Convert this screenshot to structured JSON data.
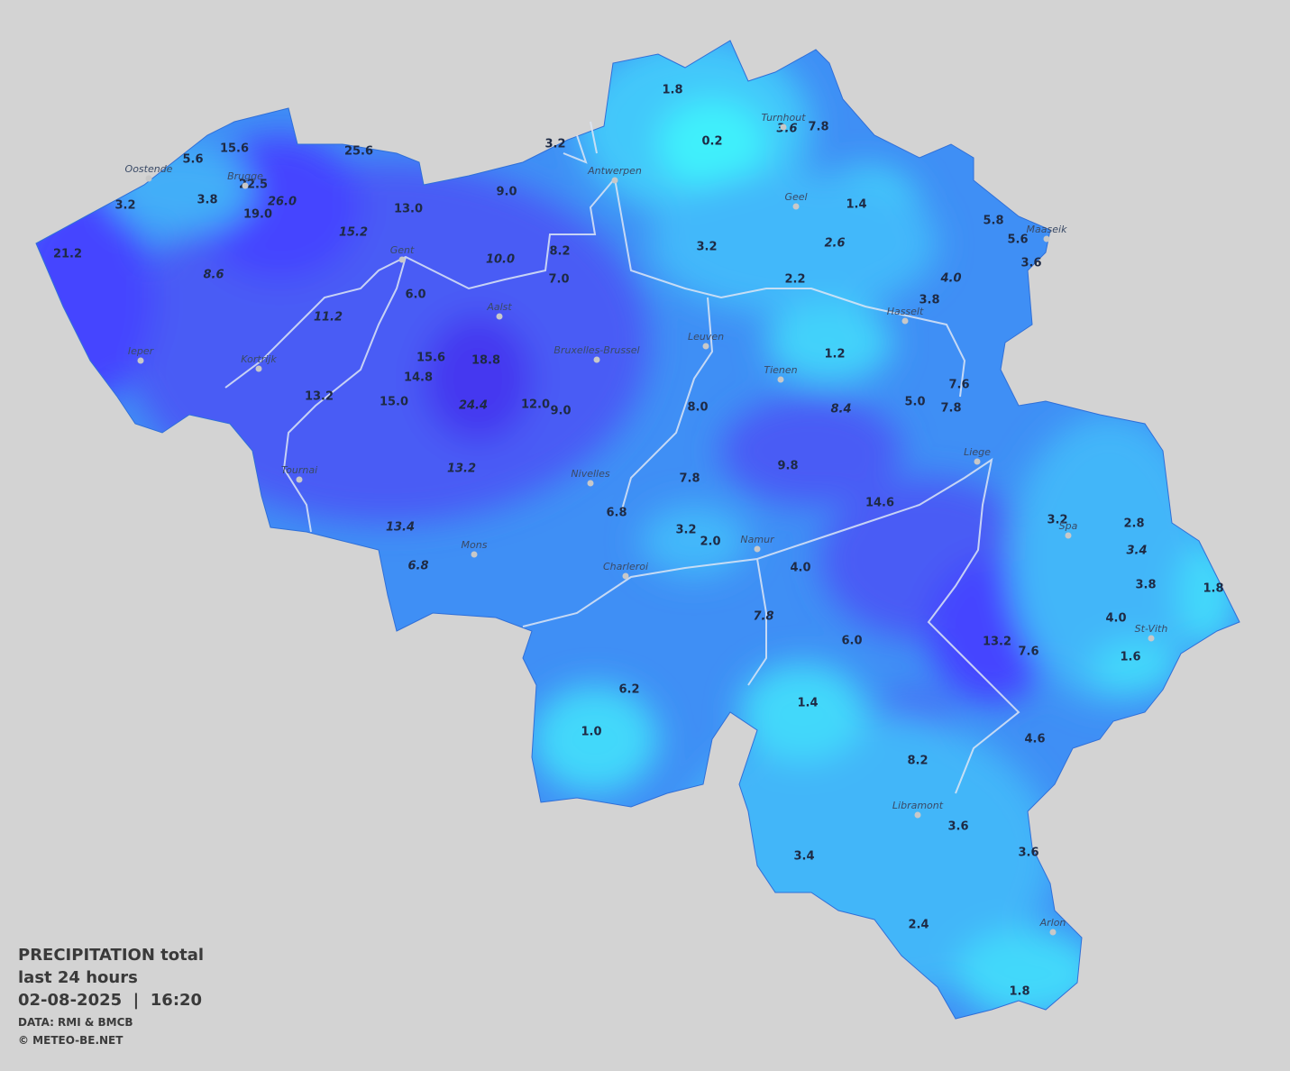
{
  "title": {
    "lines": [
      "PRECIPITATION total",
      "last 24 hours",
      "02-08-2025  |  16:20"
    ],
    "credits": [
      "DATA: RMI & BMCB",
      "© METEO-BE.NET"
    ]
  },
  "cities": [
    "Oostende",
    "Brugge",
    "Antwerpen",
    "Turnhout",
    "Geel",
    "Maaseik",
    "Gent",
    "Hasselt",
    "Aalst",
    "Leuven",
    "Bruxelles-Brussel",
    "Ieper",
    "Kortrijk",
    "Tienen",
    "Liege",
    "Tournai",
    "Nivelles",
    "Spa",
    "Namur",
    "Mons",
    "Charleroi",
    "St-Vith",
    "Libramont",
    "Arlon"
  ],
  "stations": [
    {
      "text": "1.8",
      "italic": false
    },
    {
      "text": "0.2",
      "italic": false
    },
    {
      "text": "3.2",
      "italic": false
    },
    {
      "text": "7.8",
      "italic": false
    },
    {
      "text": "3.6",
      "italic": true
    },
    {
      "text": "15.6",
      "italic": false
    },
    {
      "text": "5.6",
      "italic": false
    },
    {
      "text": "25.6",
      "italic": false
    },
    {
      "text": "22.5",
      "italic": false
    },
    {
      "text": "26.0",
      "italic": true
    },
    {
      "text": "3.8",
      "italic": false
    },
    {
      "text": "3.2",
      "italic": false
    },
    {
      "text": "19.0",
      "italic": false
    },
    {
      "text": "13.0",
      "italic": false
    },
    {
      "text": "9.0",
      "italic": false
    },
    {
      "text": "1.4",
      "italic": false
    },
    {
      "text": "5.8",
      "italic": false
    },
    {
      "text": "5.6",
      "italic": false
    },
    {
      "text": "3.6",
      "italic": false
    },
    {
      "text": "15.2",
      "italic": true
    },
    {
      "text": "21.2",
      "italic": false
    },
    {
      "text": "8.6",
      "italic": true
    },
    {
      "text": "10.0",
      "italic": true
    },
    {
      "text": "8.2",
      "italic": false
    },
    {
      "text": "7.0",
      "italic": false
    },
    {
      "text": "3.2",
      "italic": false
    },
    {
      "text": "2.6",
      "italic": true
    },
    {
      "text": "2.2",
      "italic": false
    },
    {
      "text": "4.0",
      "italic": true
    },
    {
      "text": "3.8",
      "italic": false
    },
    {
      "text": "6.0",
      "italic": false
    },
    {
      "text": "11.2",
      "italic": true
    },
    {
      "text": "1.2",
      "italic": false
    },
    {
      "text": "15.6",
      "italic": false
    },
    {
      "text": "18.8",
      "italic": false
    },
    {
      "text": "14.8",
      "italic": false
    },
    {
      "text": "13.2",
      "italic": false
    },
    {
      "text": "15.0",
      "italic": false
    },
    {
      "text": "24.4",
      "italic": true
    },
    {
      "text": "12.0",
      "italic": false
    },
    {
      "text": "9.0",
      "italic": false
    },
    {
      "text": "8.0",
      "italic": false
    },
    {
      "text": "8.4",
      "italic": true
    },
    {
      "text": "5.0",
      "italic": false
    },
    {
      "text": "7.6",
      "italic": false
    },
    {
      "text": "7.8",
      "italic": false
    },
    {
      "text": "13.2",
      "italic": true
    },
    {
      "text": "9.8",
      "italic": false
    },
    {
      "text": "7.8",
      "italic": false
    },
    {
      "text": "14.6",
      "italic": false
    },
    {
      "text": "6.8",
      "italic": false
    },
    {
      "text": "3.2",
      "italic": false
    },
    {
      "text": "2.8",
      "italic": false
    },
    {
      "text": "13.4",
      "italic": true
    },
    {
      "text": "3.2",
      "italic": false
    },
    {
      "text": "2.0",
      "italic": false
    },
    {
      "text": "3.4",
      "italic": true
    },
    {
      "text": "6.8",
      "italic": true
    },
    {
      "text": "4.0",
      "italic": false
    },
    {
      "text": "3.8",
      "italic": false
    },
    {
      "text": "1.8",
      "italic": false
    },
    {
      "text": "4.0",
      "italic": false
    },
    {
      "text": "7.8",
      "italic": true
    },
    {
      "text": "6.0",
      "italic": false
    },
    {
      "text": "13.2",
      "italic": false
    },
    {
      "text": "7.6",
      "italic": false
    },
    {
      "text": "1.6",
      "italic": false
    },
    {
      "text": "6.2",
      "italic": false
    },
    {
      "text": "1.4",
      "italic": false
    },
    {
      "text": "1.0",
      "italic": false
    },
    {
      "text": "4.6",
      "italic": false
    },
    {
      "text": "8.2",
      "italic": false
    },
    {
      "text": "3.6",
      "italic": false
    },
    {
      "text": "3.4",
      "italic": false
    },
    {
      "text": "3.6",
      "italic": false
    },
    {
      "text": "2.4",
      "italic": false
    },
    {
      "text": "1.8",
      "italic": false
    }
  ]
}
